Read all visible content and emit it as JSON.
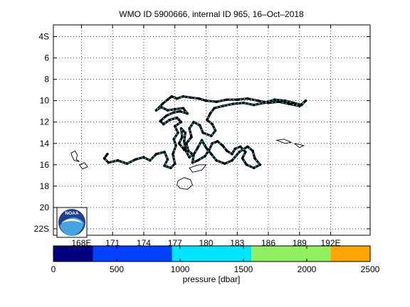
{
  "chart_data": [
    {
      "type": "map-trajectory",
      "title": "WMO ID 5900666, internal ID 965, 16–Oct–2018",
      "x_ticks": [
        "168E",
        "171",
        "174",
        "177",
        "180",
        "183",
        "186",
        "189",
        "192E"
      ],
      "x_tick_values": [
        168,
        171,
        174,
        177,
        180,
        183,
        186,
        189,
        192
      ],
      "y_ticks": [
        "4S",
        "6",
        "8",
        "10",
        "12",
        "14",
        "16",
        "18",
        "20",
        "22S"
      ],
      "y_tick_values": [
        -4,
        -6,
        -8,
        -10,
        -12,
        -14,
        -16,
        -18,
        -20,
        -22
      ],
      "xlim": [
        165.3,
        195.8
      ],
      "ylim": [
        -22.6,
        -2.9
      ],
      "grid": true,
      "grid_style": "dotted",
      "track_color": "#00e5ee",
      "profile_marker_color": "#000000",
      "track": [
        [
          170.5,
          -15.0
        ],
        [
          170.2,
          -15.4
        ],
        [
          170.6,
          -15.8
        ],
        [
          171.5,
          -15.6
        ],
        [
          172.4,
          -15.9
        ],
        [
          173.2,
          -15.5
        ],
        [
          174.0,
          -15.3
        ],
        [
          174.6,
          -15.6
        ],
        [
          175.2,
          -15.0
        ],
        [
          176.0,
          -14.8
        ],
        [
          176.3,
          -15.5
        ],
        [
          176.0,
          -16.1
        ],
        [
          176.6,
          -16.3
        ],
        [
          177.0,
          -15.9
        ],
        [
          176.8,
          -15.0
        ],
        [
          177.1,
          -14.2
        ],
        [
          176.9,
          -13.6
        ],
        [
          177.3,
          -13.0
        ],
        [
          177.0,
          -12.4
        ],
        [
          177.6,
          -12.0
        ],
        [
          177.2,
          -11.6
        ],
        [
          176.5,
          -11.8
        ],
        [
          175.9,
          -12.2
        ],
        [
          175.6,
          -11.9
        ],
        [
          176.2,
          -11.4
        ],
        [
          176.9,
          -11.1
        ],
        [
          177.5,
          -11.0
        ],
        [
          178.2,
          -11.2
        ],
        [
          177.8,
          -10.7
        ],
        [
          177.0,
          -10.8
        ],
        [
          176.3,
          -10.9
        ],
        [
          175.7,
          -10.6
        ],
        [
          175.2,
          -10.9
        ],
        [
          175.8,
          -10.3
        ],
        [
          176.3,
          -9.9
        ],
        [
          176.7,
          -9.6
        ],
        [
          177.2,
          -9.8
        ],
        [
          177.8,
          -9.6
        ],
        [
          178.5,
          -9.7
        ],
        [
          179.3,
          -9.8
        ],
        [
          180.0,
          -10.0
        ],
        [
          181.0,
          -10.1
        ],
        [
          182.0,
          -9.9
        ],
        [
          183.0,
          -9.9
        ],
        [
          184.0,
          -9.8
        ],
        [
          185.0,
          -10.0
        ],
        [
          186.0,
          -10.2
        ],
        [
          187.0,
          -10.1
        ],
        [
          188.0,
          -10.3
        ],
        [
          189.0,
          -10.5
        ],
        [
          189.6,
          -10.0
        ],
        [
          189.2,
          -10.4
        ],
        [
          188.4,
          -10.2
        ],
        [
          187.6,
          -10.0
        ],
        [
          186.6,
          -9.9
        ],
        [
          185.6,
          -10.2
        ],
        [
          184.6,
          -10.4
        ],
        [
          183.6,
          -10.2
        ],
        [
          182.6,
          -10.3
        ],
        [
          181.6,
          -10.5
        ],
        [
          180.8,
          -10.7
        ],
        [
          180.4,
          -11.2
        ],
        [
          180.1,
          -11.8
        ],
        [
          180.6,
          -12.2
        ],
        [
          180.9,
          -12.8
        ],
        [
          180.5,
          -13.3
        ],
        [
          179.7,
          -13.0
        ],
        [
          179.4,
          -12.3
        ],
        [
          178.8,
          -12.0
        ],
        [
          178.4,
          -12.6
        ],
        [
          178.6,
          -13.4
        ],
        [
          178.1,
          -14.0
        ],
        [
          178.3,
          -14.7
        ],
        [
          178.8,
          -15.1
        ],
        [
          178.7,
          -15.8
        ],
        [
          179.2,
          -15.6
        ],
        [
          179.9,
          -15.2
        ],
        [
          180.3,
          -14.6
        ],
        [
          180.6,
          -14.0
        ],
        [
          181.1,
          -13.8
        ],
        [
          181.6,
          -14.2
        ],
        [
          182.0,
          -14.7
        ],
        [
          182.5,
          -15.0
        ],
        [
          182.8,
          -14.5
        ],
        [
          183.3,
          -14.3
        ],
        [
          183.8,
          -14.8
        ],
        [
          183.5,
          -15.4
        ],
        [
          183.9,
          -16.0
        ],
        [
          184.6,
          -16.3
        ],
        [
          185.2,
          -16.0
        ],
        [
          184.7,
          -15.4
        ],
        [
          184.5,
          -14.7
        ],
        [
          184.0,
          -14.3
        ],
        [
          183.2,
          -14.8
        ],
        [
          182.5,
          -15.6
        ],
        [
          181.8,
          -15.9
        ],
        [
          181.0,
          -15.6
        ],
        [
          180.5,
          -15.0
        ],
        [
          180.0,
          -14.4
        ],
        [
          179.6,
          -13.7
        ],
        [
          179.2,
          -14.4
        ],
        [
          178.9,
          -14.9
        ],
        [
          178.4,
          -15.3
        ],
        [
          178.0,
          -14.6
        ],
        [
          177.9,
          -13.8
        ],
        [
          178.0,
          -13.0
        ],
        [
          177.6,
          -12.6
        ],
        [
          177.7,
          -13.4
        ],
        [
          177.4,
          -14.0
        ],
        [
          177.9,
          -14.6
        ]
      ],
      "islands": [
        [
          [
            167.0,
            -14.9
          ],
          [
            167.4,
            -14.7
          ],
          [
            167.6,
            -15.1
          ],
          [
            167.5,
            -15.5
          ],
          [
            167.8,
            -15.7
          ],
          [
            167.3,
            -15.6
          ],
          [
            167.1,
            -15.2
          ],
          [
            167.0,
            -14.9
          ]
        ],
        [
          [
            167.8,
            -16.0
          ],
          [
            168.3,
            -15.8
          ],
          [
            168.6,
            -16.2
          ],
          [
            168.1,
            -16.4
          ],
          [
            167.8,
            -16.0
          ]
        ],
        [
          [
            178.4,
            -16.3
          ],
          [
            179.3,
            -16.0
          ],
          [
            180.0,
            -16.0
          ],
          [
            179.6,
            -16.5
          ],
          [
            178.7,
            -16.7
          ],
          [
            178.4,
            -16.3
          ]
        ],
        [
          [
            177.3,
            -17.5
          ],
          [
            177.9,
            -17.2
          ],
          [
            178.5,
            -17.4
          ],
          [
            178.7,
            -17.9
          ],
          [
            178.2,
            -18.3
          ],
          [
            177.5,
            -18.2
          ],
          [
            177.2,
            -17.9
          ],
          [
            177.3,
            -17.5
          ]
        ],
        [
          [
            186.8,
            -13.7
          ],
          [
            187.5,
            -13.6
          ],
          [
            188.2,
            -13.9
          ],
          [
            187.6,
            -14.0
          ],
          [
            186.8,
            -13.7
          ]
        ],
        [
          [
            188.5,
            -14.0
          ],
          [
            189.4,
            -14.2
          ],
          [
            189.0,
            -14.4
          ],
          [
            188.5,
            -14.0
          ]
        ]
      ]
    },
    {
      "type": "colorbar",
      "xlabel": "pressure [dbar]",
      "ticks": [
        "0",
        "500",
        "1000",
        "1500",
        "2000",
        "2500"
      ],
      "tick_values": [
        0,
        500,
        1000,
        1500,
        2000,
        2500
      ],
      "xlim": [
        0,
        2500
      ],
      "bands": [
        {
          "from": 0,
          "to": 312,
          "color": "#000080"
        },
        {
          "from": 312,
          "to": 937,
          "color": "#0040ff"
        },
        {
          "from": 937,
          "to": 1562,
          "color": "#00e5ff"
        },
        {
          "from": 1562,
          "to": 2187,
          "color": "#90f060"
        },
        {
          "from": 2187,
          "to": 2500,
          "color": "#ffa500"
        }
      ]
    }
  ],
  "logo": {
    "text": "NOAA",
    "color_dark": "#1f3f8f",
    "color_light": "#47a3e0"
  }
}
